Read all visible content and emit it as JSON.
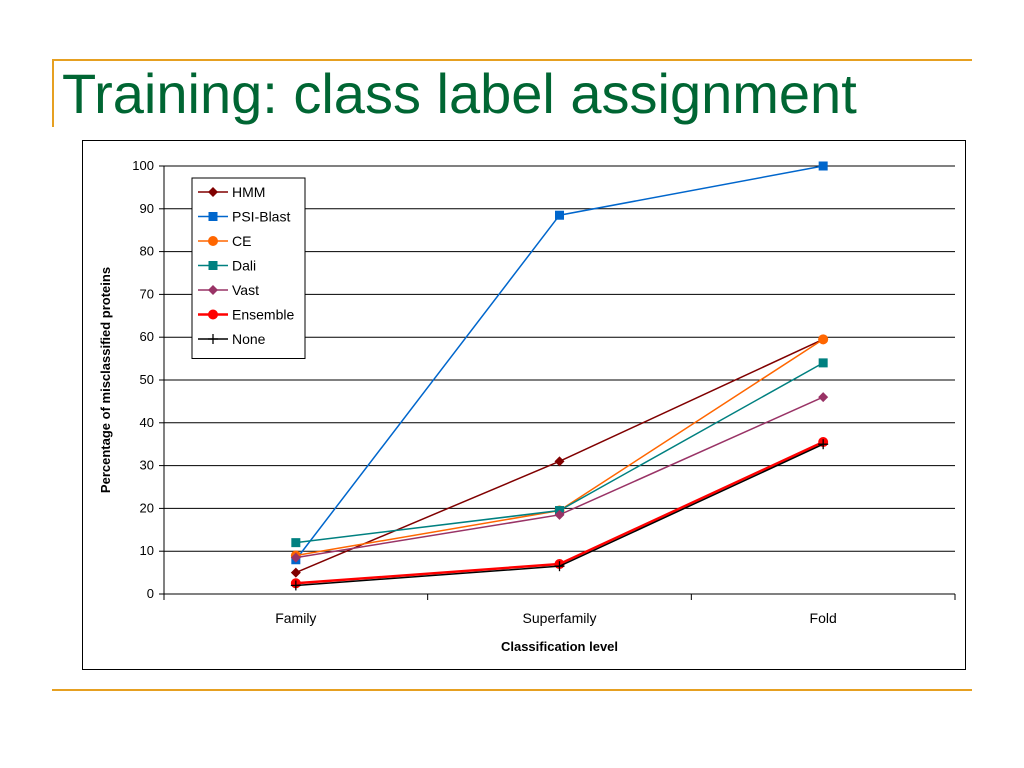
{
  "slide": {
    "title": "Training: class label assignment"
  },
  "chart_data": {
    "type": "line",
    "title": "",
    "xlabel": "Classification level",
    "ylabel": "Percentage of misclassified proteins",
    "categories": [
      "Family",
      "Superfamily",
      "Fold"
    ],
    "ylim": [
      0,
      100
    ],
    "yticks": [
      0,
      10,
      20,
      30,
      40,
      50,
      60,
      70,
      80,
      90,
      100
    ],
    "grid": true,
    "legend_position": "top-left",
    "series": [
      {
        "name": "HMM",
        "values": [
          5,
          31,
          59.5
        ],
        "color": "#800000",
        "marker": "diamond",
        "width": 1.5
      },
      {
        "name": "PSI-Blast",
        "values": [
          8,
          88.5,
          100
        ],
        "color": "#0066cc",
        "marker": "square",
        "width": 1.5
      },
      {
        "name": "CE",
        "values": [
          9,
          19.5,
          59.5
        ],
        "color": "#ff6600",
        "marker": "circle",
        "width": 1.5
      },
      {
        "name": "Dali",
        "values": [
          12,
          19.5,
          54
        ],
        "color": "#008080",
        "marker": "square",
        "width": 1.5
      },
      {
        "name": "Vast",
        "values": [
          8.5,
          18.5,
          46
        ],
        "color": "#993366",
        "marker": "diamond",
        "width": 1.5
      },
      {
        "name": "Ensemble",
        "values": [
          2.5,
          7,
          35.5
        ],
        "color": "#ff0000",
        "marker": "circle",
        "width": 2.5
      },
      {
        "name": "None",
        "values": [
          2,
          6.5,
          35
        ],
        "color": "#000000",
        "marker": "plus",
        "width": 1.5
      }
    ]
  }
}
